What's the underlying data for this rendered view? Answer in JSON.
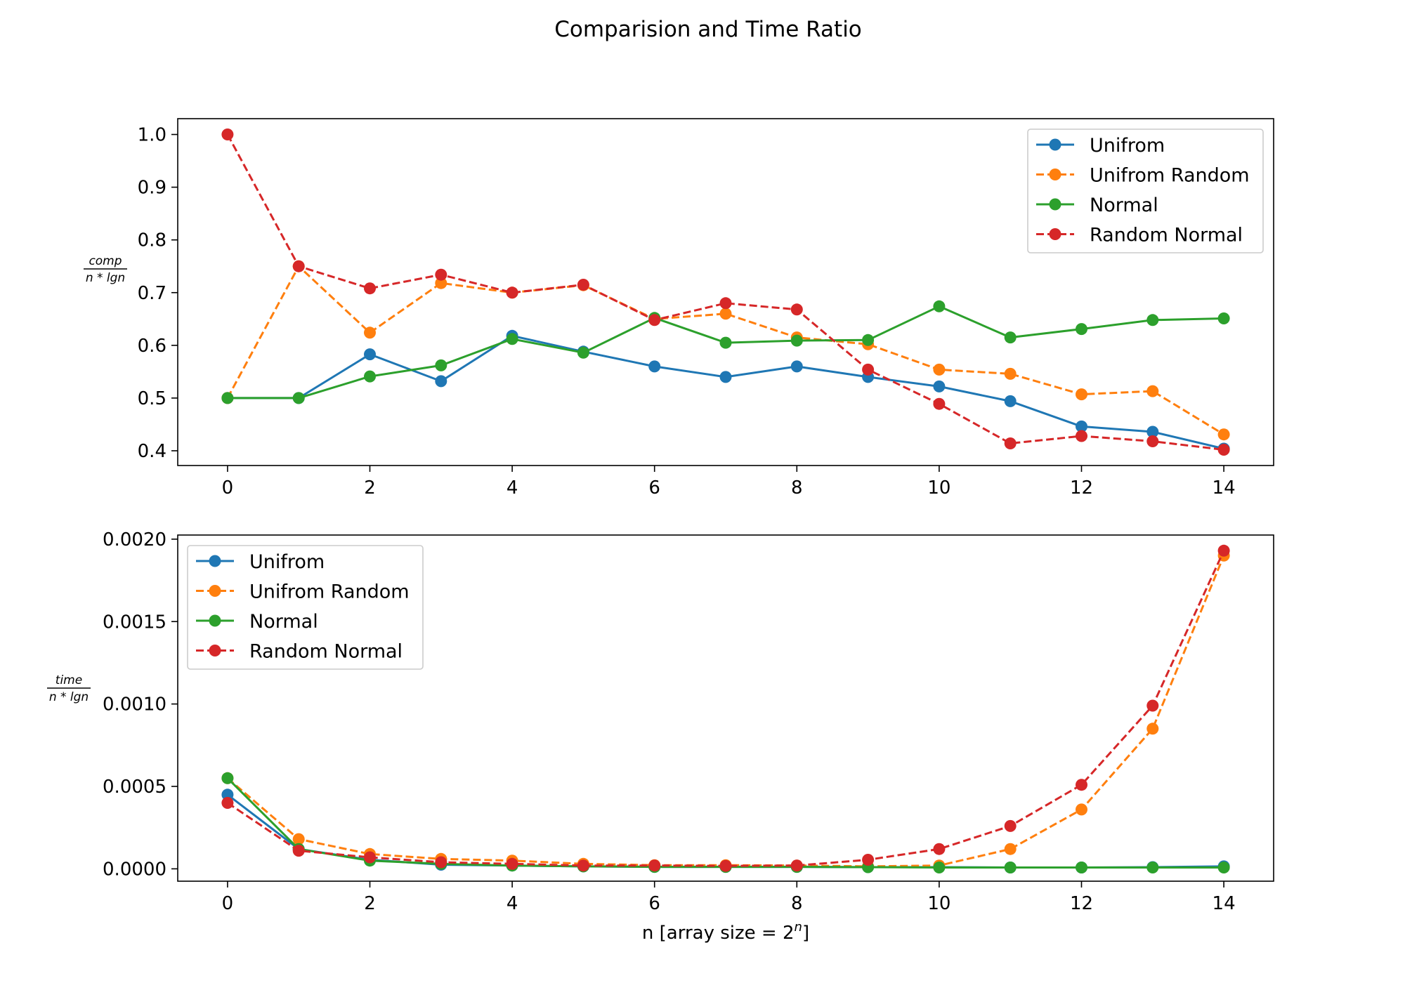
{
  "figure": {
    "title": "Comparision and Time Ratio"
  },
  "chart_data": [
    {
      "type": "line",
      "x": [
        0,
        1,
        2,
        3,
        4,
        5,
        6,
        7,
        8,
        9,
        10,
        11,
        12,
        13,
        14
      ],
      "xlim": [
        -0.7,
        14.7
      ],
      "ylim": [
        0.372,
        1.03
      ],
      "xticks": [
        0,
        2,
        4,
        6,
        8,
        10,
        12,
        14
      ],
      "xtick_labels": [
        "0",
        "2",
        "4",
        "6",
        "8",
        "10",
        "12",
        "14"
      ],
      "yticks": [
        0.4,
        0.5,
        0.6,
        0.7,
        0.8,
        0.9,
        1.0
      ],
      "ytick_labels": [
        "0.4",
        "0.5",
        "0.6",
        "0.7",
        "0.8",
        "0.9",
        "1.0"
      ],
      "ylabel": {
        "numerator": "comp",
        "denominator": "n * lgn"
      },
      "legend_position": "top-right",
      "series": [
        {
          "name": "Unifrom",
          "color": "#1f77b4",
          "style": "solid",
          "values": [
            0.5,
            0.5,
            0.583,
            0.532,
            0.618,
            0.588,
            0.56,
            0.54,
            0.56,
            0.54,
            0.522,
            0.494,
            0.446,
            0.436,
            0.404
          ]
        },
        {
          "name": "Unifrom Random",
          "color": "#ff7f0e",
          "style": "dashed",
          "values": [
            0.5,
            0.75,
            0.624,
            0.718,
            0.7,
            0.714,
            0.65,
            0.66,
            0.615,
            0.602,
            0.554,
            0.546,
            0.507,
            0.513,
            0.431
          ]
        },
        {
          "name": "Normal",
          "color": "#2ca02c",
          "style": "solid",
          "values": [
            0.5,
            0.5,
            0.541,
            0.562,
            0.612,
            0.586,
            0.652,
            0.605,
            0.609,
            0.61,
            0.674,
            0.615,
            0.631,
            0.648,
            0.651
          ]
        },
        {
          "name": "Random Normal",
          "color": "#d62728",
          "style": "dashed",
          "values": [
            1.0,
            0.75,
            0.708,
            0.734,
            0.7,
            0.715,
            0.648,
            0.68,
            0.668,
            0.554,
            0.489,
            0.414,
            0.428,
            0.418,
            0.402
          ]
        }
      ]
    },
    {
      "type": "line",
      "x": [
        0,
        1,
        2,
        3,
        4,
        5,
        6,
        7,
        8,
        9,
        10,
        11,
        12,
        13,
        14
      ],
      "xlim": [
        -0.7,
        14.7
      ],
      "ylim": [
        -7.5e-05,
        0.002025
      ],
      "xticks": [
        0,
        2,
        4,
        6,
        8,
        10,
        12,
        14
      ],
      "xtick_labels": [
        "0",
        "2",
        "4",
        "6",
        "8",
        "10",
        "12",
        "14"
      ],
      "yticks": [
        0.0,
        0.0005,
        0.001,
        0.0015,
        0.002
      ],
      "ytick_labels": [
        "0.0000",
        "0.0005",
        "0.0010",
        "0.0015",
        "0.0020"
      ],
      "ylabel": {
        "numerator": "time",
        "denominator": "n * lgn"
      },
      "xlabel": {
        "text": "n [array size = 2",
        "superscript": "n",
        "suffix": "]"
      },
      "legend_position": "top-left",
      "series": [
        {
          "name": "Unifrom",
          "color": "#1f77b4",
          "style": "solid",
          "values": [
            0.00045,
            0.00012,
            5.5e-05,
            2.5e-05,
            2e-05,
            1.5e-05,
            1.2e-05,
            1.2e-05,
            1.2e-05,
            1e-05,
            1e-05,
            8e-06,
            8e-06,
            1e-05,
            1.5e-05
          ]
        },
        {
          "name": "Unifrom Random",
          "color": "#ff7f0e",
          "style": "dashed",
          "values": [
            0.00055,
            0.00018,
            9e-05,
            6e-05,
            5e-05,
            3e-05,
            2.2e-05,
            2.2e-05,
            2e-05,
            1.5e-05,
            2e-05,
            0.00012,
            0.00036,
            0.00085,
            0.0019
          ]
        },
        {
          "name": "Normal",
          "color": "#2ca02c",
          "style": "solid",
          "values": [
            0.00055,
            0.00012,
            5e-05,
            3e-05,
            2e-05,
            1.5e-05,
            1.2e-05,
            1.2e-05,
            1.2e-05,
            1e-05,
            8e-06,
            8e-06,
            8e-06,
            8e-06,
            8e-06
          ]
        },
        {
          "name": "Random Normal",
          "color": "#d62728",
          "style": "dashed",
          "values": [
            0.0004,
            0.00011,
            7e-05,
            4e-05,
            3e-05,
            2e-05,
            2e-05,
            1.8e-05,
            2e-05,
            5.5e-05,
            0.00012,
            0.00026,
            0.00051,
            0.00099,
            0.00193
          ]
        }
      ]
    }
  ]
}
